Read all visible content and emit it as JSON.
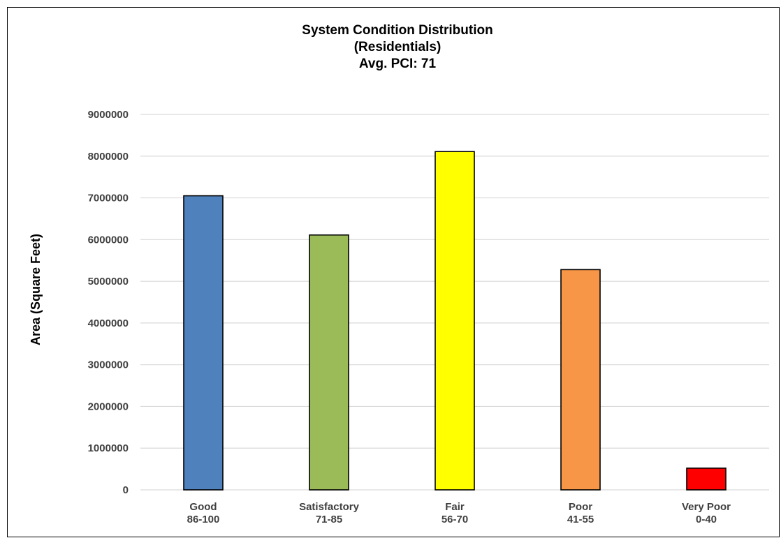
{
  "chart_data": {
    "type": "bar",
    "title": [
      "System Condition Distribution",
      "(Residentials)",
      "Avg. PCI: 71"
    ],
    "xlabel": "",
    "ylabel": "Area (Square Feet)",
    "ylim": [
      0,
      9000000
    ],
    "yticks": [
      "0",
      "1000000",
      "2000000",
      "3000000",
      "4000000",
      "5000000",
      "6000000",
      "7000000",
      "8000000",
      "9000000"
    ],
    "categories": [
      [
        "Good",
        "86-100"
      ],
      [
        "Satisfactory",
        "71-85"
      ],
      [
        "Fair",
        "56-70"
      ],
      [
        "Poor",
        "41-55"
      ],
      [
        "Very Poor",
        "0-40"
      ]
    ],
    "values": [
      7050000,
      6110000,
      8110000,
      5280000,
      520000
    ],
    "colors": [
      "#4f81bd",
      "#9bbb59",
      "#ffff00",
      "#f79646",
      "#ff0000"
    ],
    "grid": true,
    "legend": "none"
  }
}
